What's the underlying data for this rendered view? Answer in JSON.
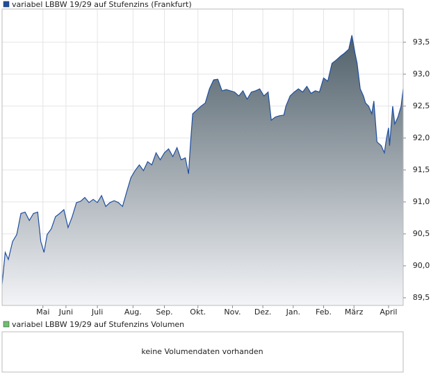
{
  "chart_data": {
    "type": "area",
    "series": [
      {
        "name": "variabel LBBW 19/29 auf Stufenzins (Frankfurt)",
        "color": "#1f4e9e",
        "values": [
          89.71,
          90.21,
          90.1,
          90.38,
          90.49,
          90.82,
          90.84,
          90.71,
          90.82,
          90.84,
          90.38,
          90.21,
          90.49,
          90.58,
          90.77,
          90.82,
          90.88,
          90.6,
          90.77,
          90.99,
          91.01,
          91.07,
          90.99,
          91.04,
          90.99,
          91.1,
          90.93,
          90.99,
          91.02,
          90.99,
          90.93,
          91.16,
          91.38,
          91.49,
          91.58,
          91.49,
          91.63,
          91.58,
          91.77,
          91.66,
          91.77,
          91.83,
          91.71,
          91.85,
          91.66,
          91.69,
          91.44,
          91.94,
          92.38,
          92.44,
          92.5,
          92.55,
          92.77,
          92.91,
          92.92,
          92.74,
          92.76,
          92.74,
          92.72,
          92.66,
          92.74,
          92.61,
          92.72,
          92.74,
          92.77,
          92.66,
          92.72,
          92.28,
          92.33,
          92.35,
          92.36,
          92.5,
          92.66,
          92.72,
          92.77,
          92.72,
          92.81,
          92.7,
          92.74,
          92.72,
          92.94,
          92.89,
          93.17,
          93.22,
          93.28,
          93.33,
          93.39,
          93.61,
          93.33,
          93.17,
          92.77,
          92.66,
          92.55,
          92.5,
          92.38,
          92.58,
          91.94,
          91.88,
          91.77,
          91.99,
          92.16,
          91.88,
          92.5,
          92.22,
          92.33,
          92.5,
          92.77
        ]
      }
    ],
    "x": [
      0,
      3,
      6,
      10,
      14,
      18,
      22,
      26,
      30,
      34,
      37,
      40,
      43,
      47,
      51,
      55,
      59,
      63,
      67,
      71,
      75,
      79,
      83,
      87,
      91,
      95,
      99,
      103,
      107,
      111,
      115,
      119,
      123,
      127,
      131,
      135,
      139,
      143,
      147,
      151,
      155,
      159,
      163,
      167,
      171,
      175,
      178,
      180,
      182,
      186,
      190,
      194,
      198,
      202,
      206,
      210,
      214,
      218,
      222,
      226,
      230,
      234,
      238,
      242,
      246,
      250,
      254,
      257,
      261,
      265,
      269,
      271,
      275,
      279,
      283,
      287,
      291,
      295,
      299,
      303,
      307,
      311,
      315,
      319,
      323,
      327,
      331,
      334,
      337,
      339,
      342,
      345,
      347,
      350,
      353,
      355,
      358,
      362,
      365,
      367,
      369,
      370,
      373,
      375,
      378,
      381,
      383
    ],
    "xlim": [
      0,
      383
    ],
    "xticks": [
      {
        "value": 39,
        "label": "Mai"
      },
      {
        "value": 61,
        "label": "Juni"
      },
      {
        "value": 91,
        "label": "Juli"
      },
      {
        "value": 125,
        "label": "Aug."
      },
      {
        "value": 155,
        "label": "Sep."
      },
      {
        "value": 187,
        "label": "Okt."
      },
      {
        "value": 220,
        "label": "Nov."
      },
      {
        "value": 249,
        "label": "Dez."
      },
      {
        "value": 278,
        "label": "Jan."
      },
      {
        "value": 307,
        "label": "Feb."
      },
      {
        "value": 336,
        "label": "März"
      },
      {
        "value": 369,
        "label": "April"
      }
    ],
    "ylim": [
      89.38,
      94.02
    ],
    "yticks": [
      {
        "value": 89.5,
        "label": "89,5"
      },
      {
        "value": 90,
        "label": "90,0"
      },
      {
        "value": 90.5,
        "label": "90,5"
      },
      {
        "value": 91,
        "label": "91,0"
      },
      {
        "value": 91.5,
        "label": "91,5"
      },
      {
        "value": 92,
        "label": "92,0"
      },
      {
        "value": 92.5,
        "label": "92,5"
      },
      {
        "value": 93,
        "label": "93,0"
      },
      {
        "value": 93.5,
        "label": "93,5"
      }
    ],
    "grid": true
  },
  "volume": {
    "legend": "variabel LBBW 19/29 auf Stufenzins Volumen",
    "message": "keine Volumendaten vorhanden"
  }
}
